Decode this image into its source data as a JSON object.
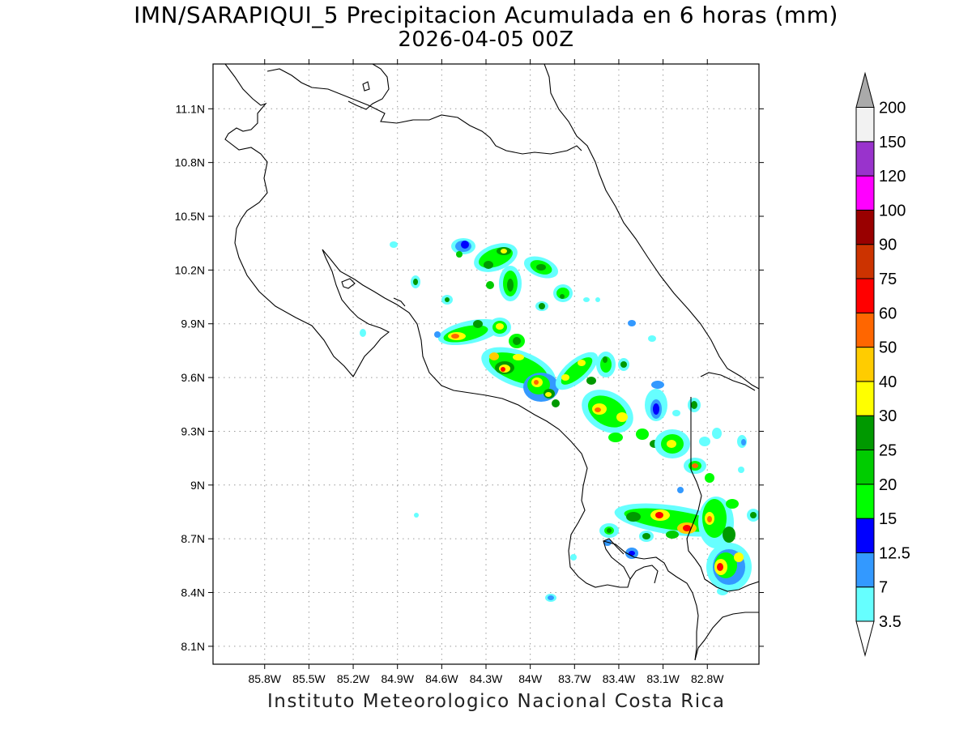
{
  "title": {
    "line1": "IMN/SARAPIQUI_5 Precipitacion Acumulada en 6 horas (mm)",
    "line2": "2026-04-05 00Z"
  },
  "footer": "Instituto Meteorologico Nacional Costa Rica",
  "map": {
    "lon_range": [
      -86.15,
      -82.45
    ],
    "lat_range": [
      8.0,
      11.35
    ],
    "lon_ticks": [
      {
        "value": -85.8,
        "label": "85.8W"
      },
      {
        "value": -85.5,
        "label": "85.5W"
      },
      {
        "value": -85.2,
        "label": "85.2W"
      },
      {
        "value": -84.9,
        "label": "84.9W"
      },
      {
        "value": -84.6,
        "label": "84.6W"
      },
      {
        "value": -84.3,
        "label": "84.3W"
      },
      {
        "value": -84.0,
        "label": "84W"
      },
      {
        "value": -83.7,
        "label": "83.7W"
      },
      {
        "value": -83.4,
        "label": "83.4W"
      },
      {
        "value": -83.1,
        "label": "83.1W"
      },
      {
        "value": -82.8,
        "label": "82.8W"
      }
    ],
    "lat_ticks": [
      {
        "value": 11.1,
        "label": "11.1N"
      },
      {
        "value": 10.8,
        "label": "10.8N"
      },
      {
        "value": 10.5,
        "label": "10.5N"
      },
      {
        "value": 10.2,
        "label": "10.2N"
      },
      {
        "value": 9.9,
        "label": "9.9N"
      },
      {
        "value": 9.6,
        "label": "9.6N"
      },
      {
        "value": 9.3,
        "label": "9.3N"
      },
      {
        "value": 9.0,
        "label": "9N"
      },
      {
        "value": 8.7,
        "label": "8.7N"
      },
      {
        "value": 8.4,
        "label": "8.4N"
      },
      {
        "value": 8.1,
        "label": "8.1N"
      }
    ],
    "grid": true
  },
  "colorbar": {
    "levels": [
      {
        "label": "3.5",
        "color": "#66ffff"
      },
      {
        "label": "7",
        "color": "#3399ff"
      },
      {
        "label": "12.5",
        "color": "#0000ff"
      },
      {
        "label": "15",
        "color": "#00ff00"
      },
      {
        "label": "20",
        "color": "#00cc00"
      },
      {
        "label": "25",
        "color": "#009900"
      },
      {
        "label": "30",
        "color": "#ffff00"
      },
      {
        "label": "40",
        "color": "#ffcc00"
      },
      {
        "label": "50",
        "color": "#ff6600"
      },
      {
        "label": "60",
        "color": "#ff0000"
      },
      {
        "label": "75",
        "color": "#cc3300"
      },
      {
        "label": "90",
        "color": "#990000"
      },
      {
        "label": "100",
        "color": "#ff00ff"
      },
      {
        "label": "120",
        "color": "#9933cc"
      },
      {
        "label": "150",
        "color": "#f2f2f2"
      },
      {
        "label": "200",
        "color": "#aaaaaa"
      }
    ]
  }
}
